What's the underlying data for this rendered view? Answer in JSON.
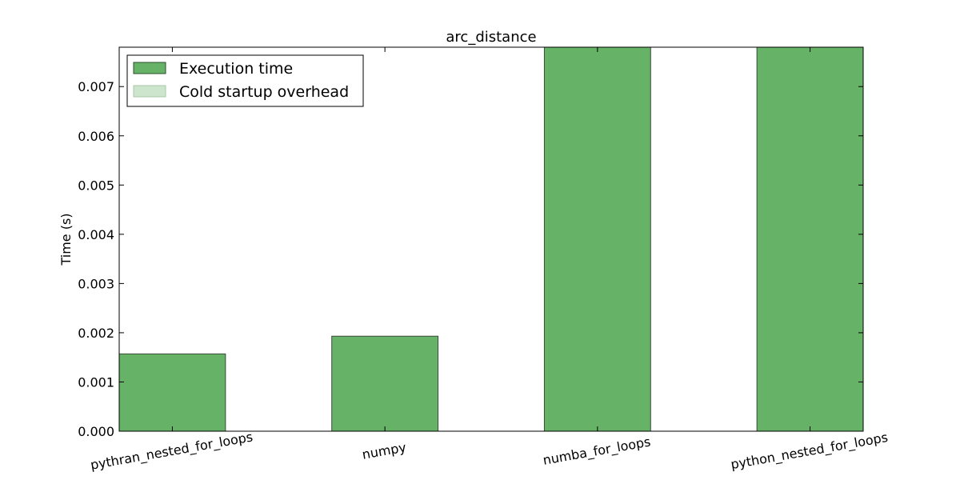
{
  "chart_data": {
    "type": "bar",
    "title": "arc_distance",
    "xlabel": "",
    "ylabel": "Time (s)",
    "categories": [
      "pythran_nested_for_loops",
      "numpy",
      "numba_for_loops",
      "python_nested_for_loops"
    ],
    "series": [
      {
        "name": "Execution time",
        "color": "#66b266",
        "values": [
          0.00157,
          0.00193,
          0.0078,
          0.0078
        ]
      },
      {
        "name": "Cold startup overhead",
        "color": "#cce5cc",
        "values": [
          0,
          0,
          0,
          0
        ]
      }
    ],
    "ylim": [
      0,
      0.0078
    ],
    "yticks": [
      "0.000",
      "0.001",
      "0.002",
      "0.003",
      "0.004",
      "0.005",
      "0.006",
      "0.007"
    ],
    "legend_position": "top-left",
    "grid": false
  }
}
